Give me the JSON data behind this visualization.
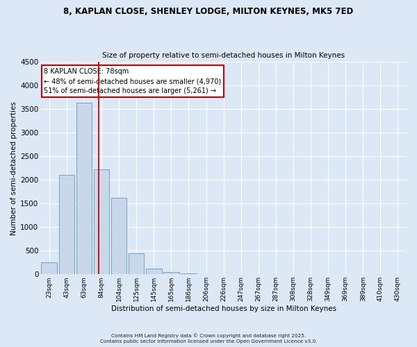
{
  "title1": "8, KAPLAN CLOSE, SHENLEY LODGE, MILTON KEYNES, MK5 7ED",
  "title2": "Size of property relative to semi-detached houses in Milton Keynes",
  "xlabel": "Distribution of semi-detached houses by size in Milton Keynes",
  "ylabel": "Number of semi-detached properties",
  "bar_labels": [
    "23sqm",
    "43sqm",
    "63sqm",
    "84sqm",
    "104sqm",
    "125sqm",
    "145sqm",
    "165sqm",
    "186sqm",
    "206sqm",
    "226sqm",
    "247sqm",
    "267sqm",
    "287sqm",
    "308sqm",
    "328sqm",
    "349sqm",
    "369sqm",
    "389sqm",
    "410sqm",
    "430sqm"
  ],
  "bar_values": [
    250,
    2100,
    3630,
    2230,
    1620,
    450,
    115,
    55,
    15,
    0,
    0,
    0,
    0,
    0,
    0,
    0,
    0,
    0,
    0,
    0,
    0
  ],
  "bar_color": "#c8d8ea",
  "bar_edgecolor": "#6699bb",
  "background_color": "#dce8f5",
  "grid_color": "#ffffff",
  "ylim": [
    0,
    4500
  ],
  "yticks": [
    0,
    500,
    1000,
    1500,
    2000,
    2500,
    3000,
    3500,
    4000,
    4500
  ],
  "annotation_title": "8 KAPLAN CLOSE: 78sqm",
  "annotation_line1": "← 48% of semi-detached houses are smaller (4,970)",
  "annotation_line2": "51% of semi-detached houses are larger (5,261) →",
  "annotation_box_color": "#ffffff",
  "annotation_box_edgecolor": "#cc0000",
  "redline_x": 2.86,
  "footer1": "Contains HM Land Registry data © Crown copyright and database right 2025.",
  "footer2": "Contains public sector information licensed under the Open Government Licence v3.0."
}
